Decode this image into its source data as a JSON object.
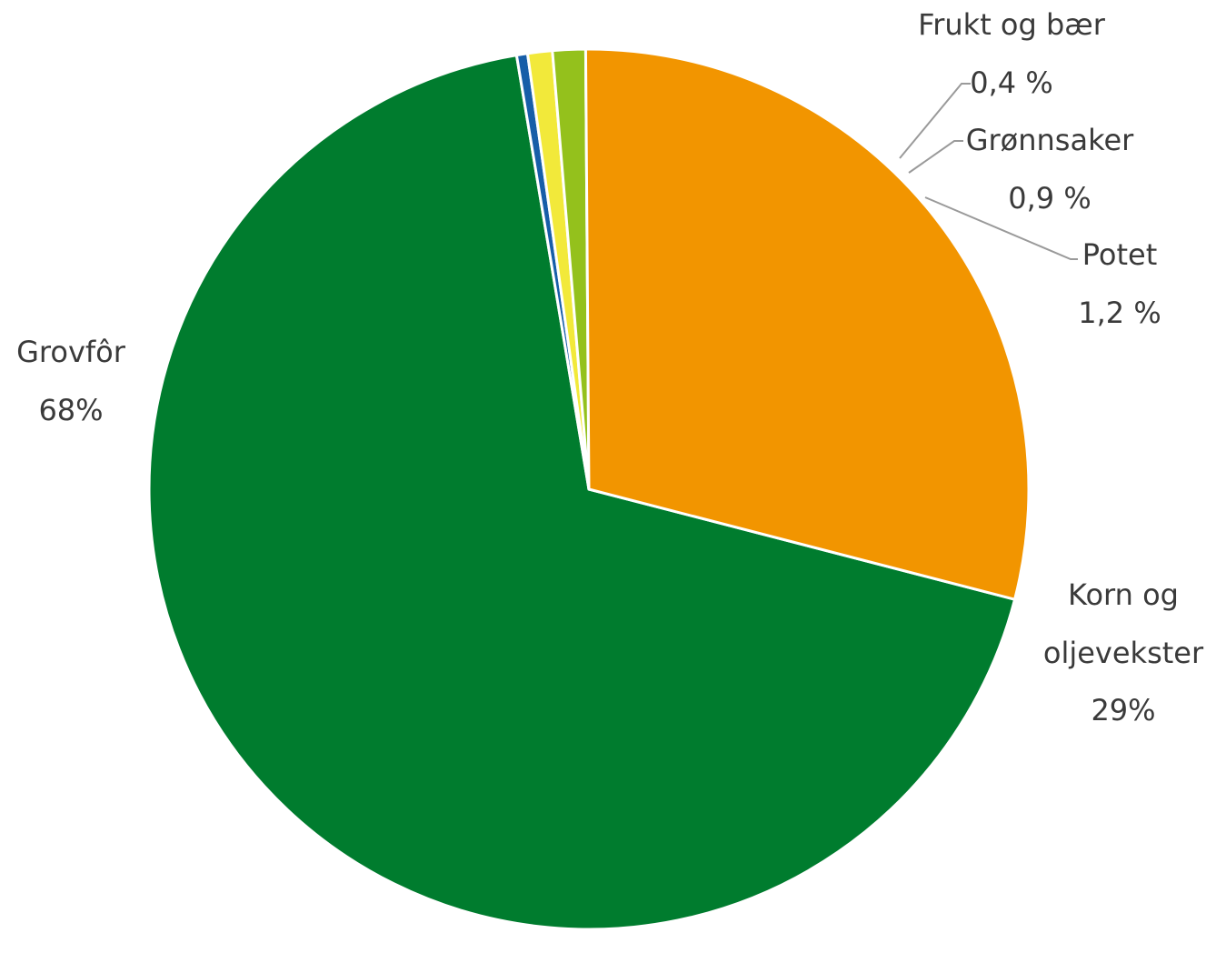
{
  "chart_data": {
    "type": "pie",
    "title": "",
    "categories": [
      "Grovfôr",
      "Korn og oljevekster",
      "Potet",
      "Grønnsaker",
      "Frukt og bær"
    ],
    "values": [
      68,
      29,
      1.2,
      0.9,
      0.4
    ],
    "colors": [
      "#007c2e",
      "#f29500",
      "#94c11c",
      "#f2e93a",
      "#175ea8"
    ],
    "labels": [
      {
        "name": "Grovfôr",
        "value": "68%"
      },
      {
        "name_lines": [
          "Korn og",
          "oljevekster"
        ],
        "value": "29%"
      },
      {
        "name": "Potet",
        "value": "1,2 %"
      },
      {
        "name": "Grønnsaker",
        "value": "0,9 %"
      },
      {
        "name": "Frukt og bær",
        "value": "0,4 %"
      }
    ],
    "legend": "none"
  }
}
